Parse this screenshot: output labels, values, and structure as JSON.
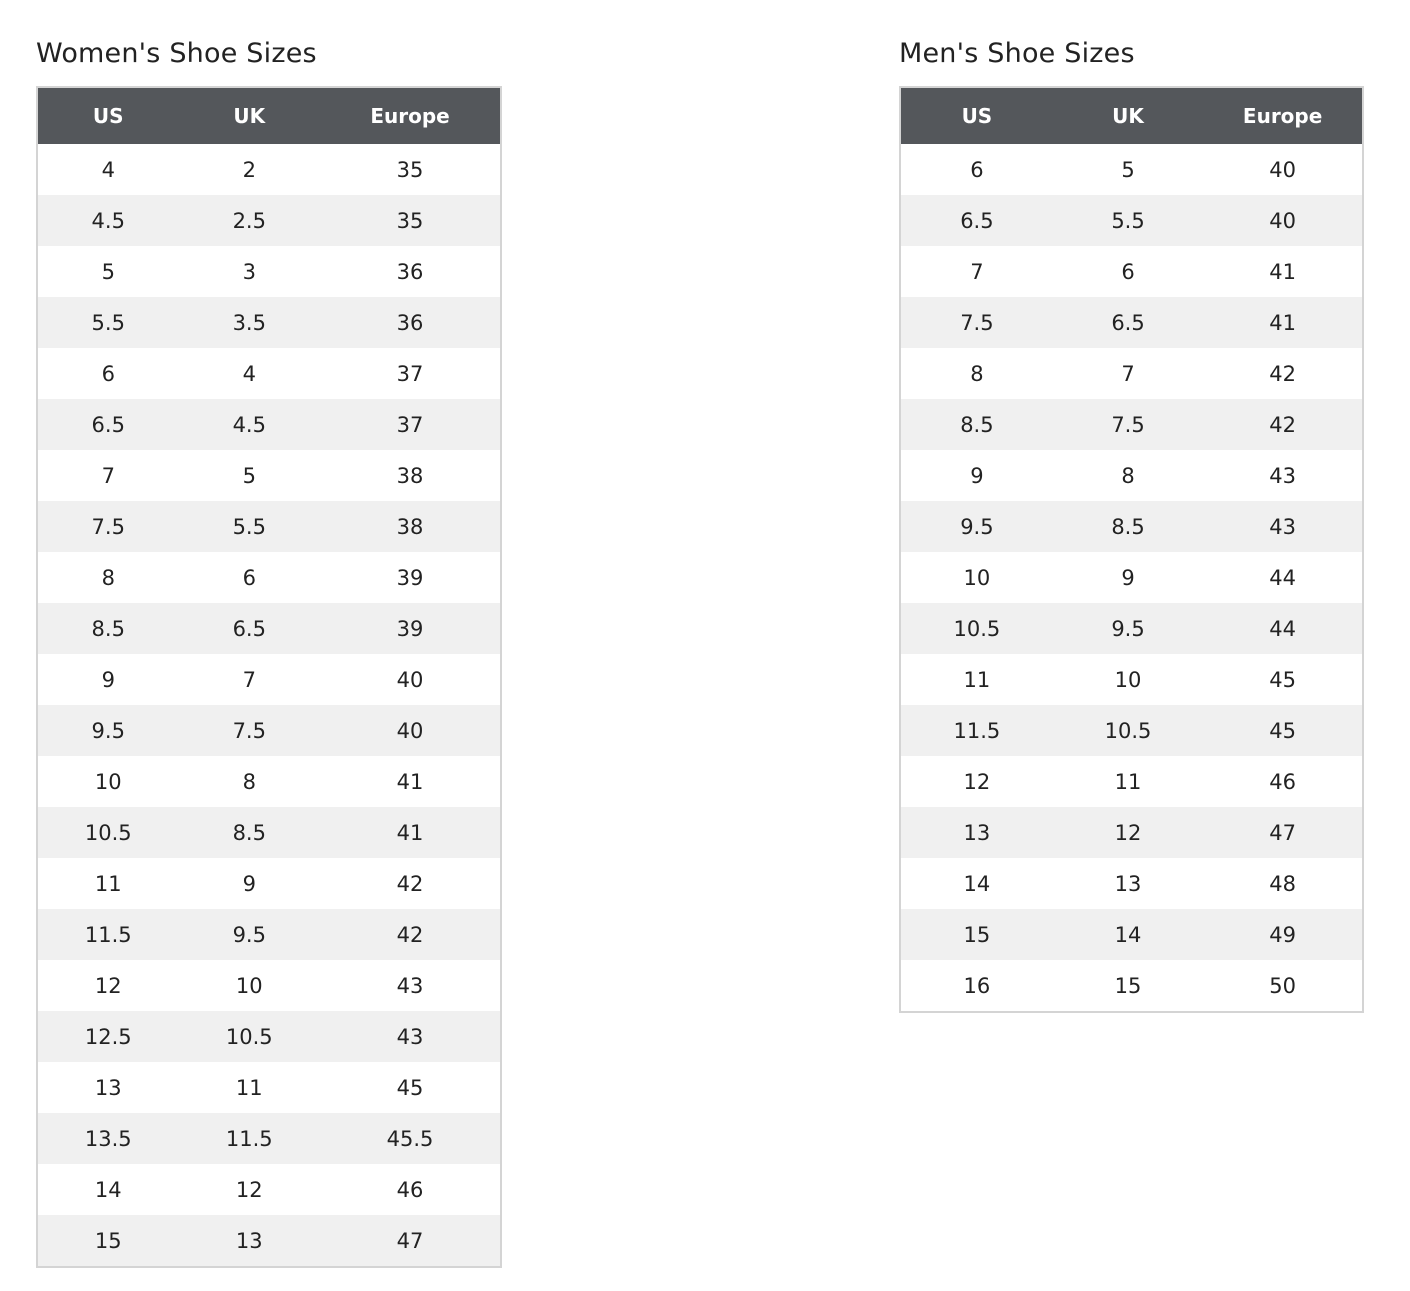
{
  "women": {
    "title": "Women's Shoe Sizes",
    "headers": [
      "US",
      "UK",
      "Europe"
    ],
    "rows": [
      [
        "4",
        "2",
        "35"
      ],
      [
        "4.5",
        "2.5",
        "35"
      ],
      [
        "5",
        "3",
        "36"
      ],
      [
        "5.5",
        "3.5",
        "36"
      ],
      [
        "6",
        "4",
        "37"
      ],
      [
        "6.5",
        "4.5",
        "37"
      ],
      [
        "7",
        "5",
        "38"
      ],
      [
        "7.5",
        "5.5",
        "38"
      ],
      [
        "8",
        "6",
        "39"
      ],
      [
        "8.5",
        "6.5",
        "39"
      ],
      [
        "9",
        "7",
        "40"
      ],
      [
        "9.5",
        "7.5",
        "40"
      ],
      [
        "10",
        "8",
        "41"
      ],
      [
        "10.5",
        "8.5",
        "41"
      ],
      [
        "11",
        "9",
        "42"
      ],
      [
        "11.5",
        "9.5",
        "42"
      ],
      [
        "12",
        "10",
        "43"
      ],
      [
        "12.5",
        "10.5",
        "43"
      ],
      [
        "13",
        "11",
        "45"
      ],
      [
        "13.5",
        "11.5",
        "45.5"
      ],
      [
        "14",
        "12",
        "46"
      ],
      [
        "15",
        "13",
        "47"
      ]
    ]
  },
  "men": {
    "title": "Men's Shoe Sizes",
    "headers": [
      "US",
      "UK",
      "Europe"
    ],
    "rows": [
      [
        "6",
        "5",
        "40"
      ],
      [
        "6.5",
        "5.5",
        "40"
      ],
      [
        "7",
        "6",
        "41"
      ],
      [
        "7.5",
        "6.5",
        "41"
      ],
      [
        "8",
        "7",
        "42"
      ],
      [
        "8.5",
        "7.5",
        "42"
      ],
      [
        "9",
        "8",
        "43"
      ],
      [
        "9.5",
        "8.5",
        "43"
      ],
      [
        "10",
        "9",
        "44"
      ],
      [
        "10.5",
        "9.5",
        "44"
      ],
      [
        "11",
        "10",
        "45"
      ],
      [
        "11.5",
        "10.5",
        "45"
      ],
      [
        "12",
        "11",
        "46"
      ],
      [
        "13",
        "12",
        "47"
      ],
      [
        "14",
        "13",
        "48"
      ],
      [
        "15",
        "14",
        "49"
      ],
      [
        "16",
        "15",
        "50"
      ]
    ]
  },
  "colors": {
    "header_bg": "#54575b",
    "row_alt": "#f0f0f0",
    "border": "#d4d4d4"
  }
}
